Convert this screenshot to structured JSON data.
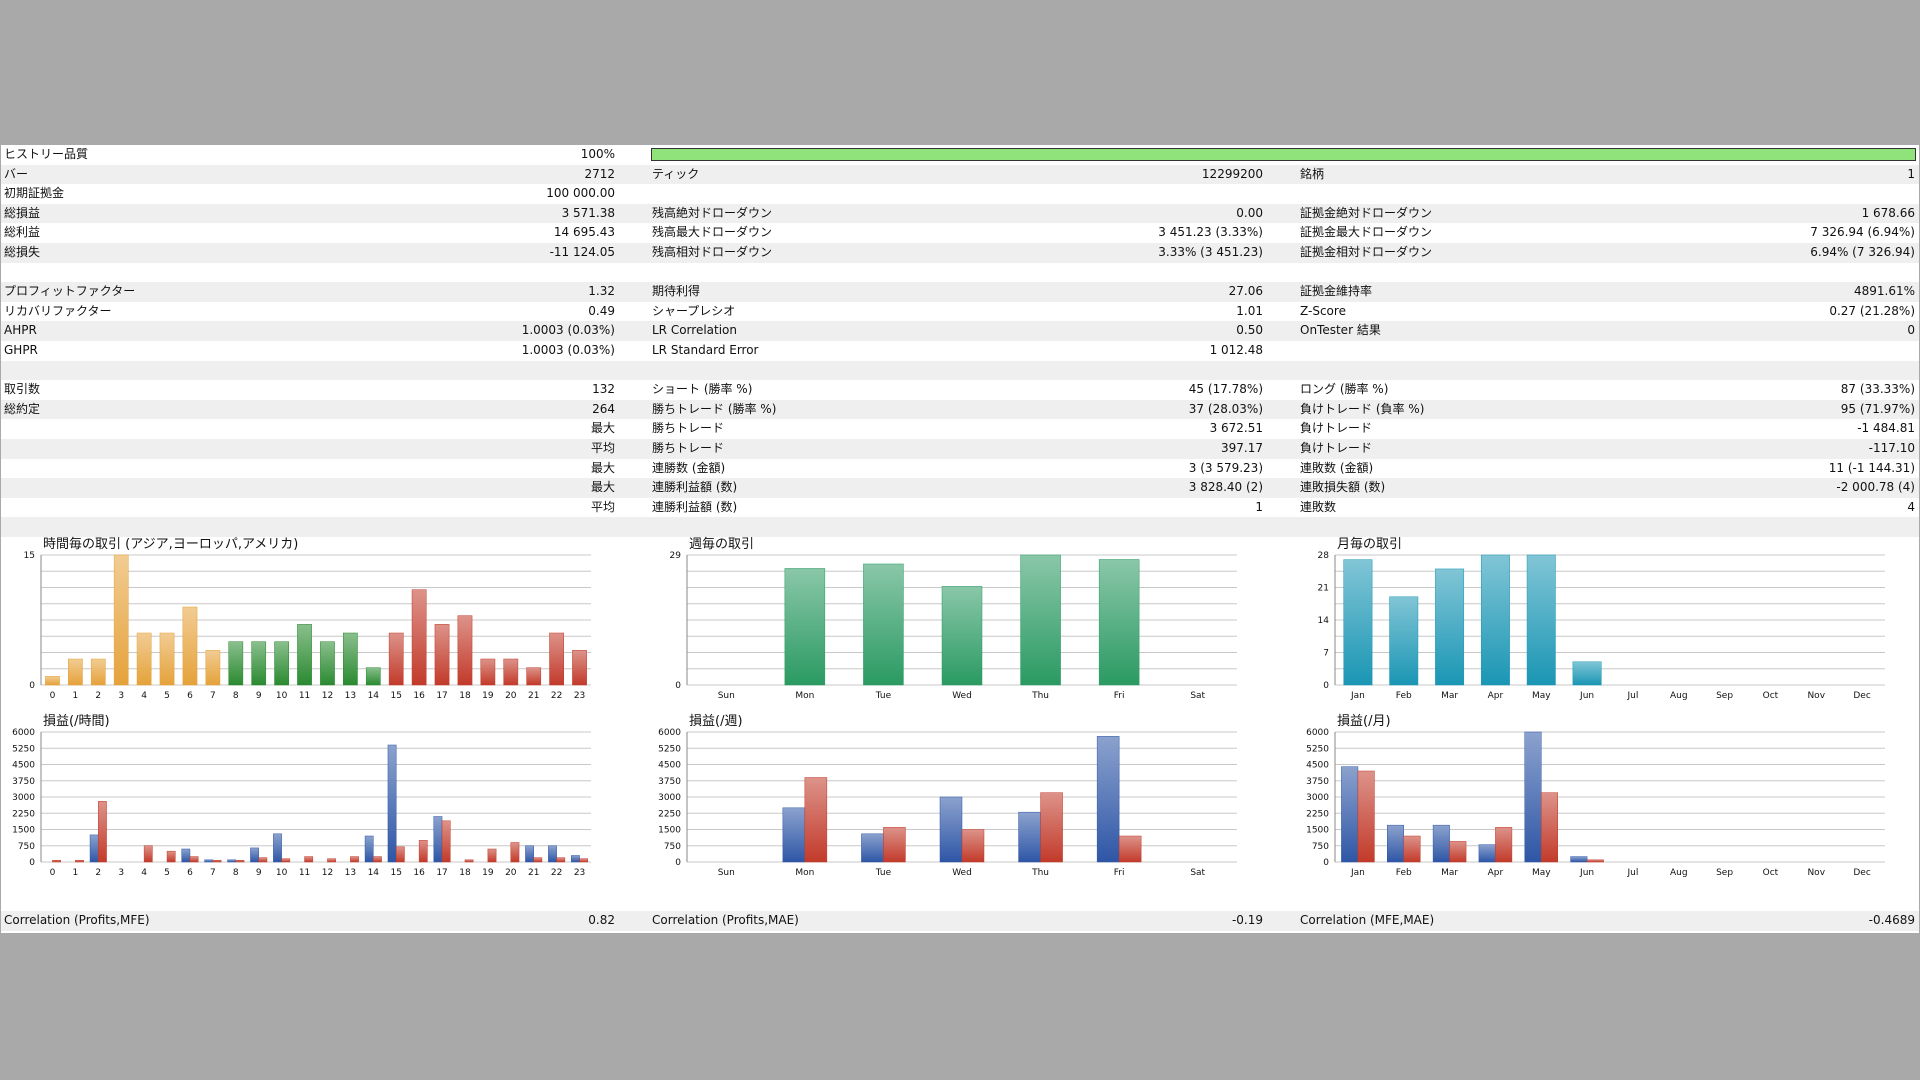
{
  "colors": {
    "background": "#a9a9a9",
    "quality_bar": "#90ee7a",
    "row_shade": "#efefef",
    "blue": "#2e56a6",
    "red": "#c23a2a",
    "teal_green": "#2a9a62",
    "cyan": "#1a96b4",
    "gold": "#e5a23a",
    "green": "#2a8a30"
  },
  "stats": {
    "history_quality": {
      "label": "ヒストリー品質",
      "value": "100%",
      "fraction": 1.0
    },
    "rows": [
      {
        "shade": true,
        "c1": {
          "label": "バー",
          "value": "2712"
        },
        "c2": {
          "label": "ティック",
          "value": "12299200"
        },
        "c3": {
          "label": "銘柄",
          "value": "1"
        }
      },
      {
        "shade": false,
        "c1": {
          "label": "初期証拠金",
          "value": "100 000.00"
        },
        "c2": {
          "label": "",
          "value": ""
        },
        "c3": {
          "label": "",
          "value": ""
        }
      },
      {
        "shade": true,
        "c1": {
          "label": "総損益",
          "value": "3 571.38"
        },
        "c2": {
          "label": "残高絶対ドローダウン",
          "value": "0.00"
        },
        "c3": {
          "label": "証拠金絶対ドローダウン",
          "value": "1 678.66"
        }
      },
      {
        "shade": false,
        "c1": {
          "label": "総利益",
          "value": "14 695.43"
        },
        "c2": {
          "label": "残高最大ドローダウン",
          "value": "3 451.23 (3.33%)"
        },
        "c3": {
          "label": "証拠金最大ドローダウン",
          "value": "7 326.94 (6.94%)"
        }
      },
      {
        "shade": true,
        "c1": {
          "label": "総損失",
          "value": "-11 124.05"
        },
        "c2": {
          "label": "残高相対ドローダウン",
          "value": "3.33% (3 451.23)"
        },
        "c3": {
          "label": "証拠金相対ドローダウン",
          "value": "6.94% (7 326.94)"
        }
      },
      {
        "shade": false,
        "c1": {
          "label": "",
          "value": ""
        },
        "c2": {
          "label": "",
          "value": ""
        },
        "c3": {
          "label": "",
          "value": ""
        }
      },
      {
        "shade": true,
        "c1": {
          "label": "プロフィットファクター",
          "value": "1.32"
        },
        "c2": {
          "label": "期待利得",
          "value": "27.06"
        },
        "c3": {
          "label": "証拠金維持率",
          "value": "4891.61%"
        }
      },
      {
        "shade": false,
        "c1": {
          "label": "リカバリファクター",
          "value": "0.49"
        },
        "c2": {
          "label": "シャープレシオ",
          "value": "1.01"
        },
        "c3": {
          "label": "Z-Score",
          "value": "0.27 (21.28%)"
        }
      },
      {
        "shade": true,
        "c1": {
          "label": "AHPR",
          "value": "1.0003 (0.03%)"
        },
        "c2": {
          "label": "LR Correlation",
          "value": "0.50"
        },
        "c3": {
          "label": "OnTester 結果",
          "value": "0"
        }
      },
      {
        "shade": false,
        "c1": {
          "label": "GHPR",
          "value": "1.0003 (0.03%)"
        },
        "c2": {
          "label": "LR Standard Error",
          "value": "1 012.48"
        },
        "c3": {
          "label": "",
          "value": ""
        }
      },
      {
        "shade": true,
        "c1": {
          "label": "",
          "value": ""
        },
        "c2": {
          "label": "",
          "value": ""
        },
        "c3": {
          "label": "",
          "value": ""
        }
      },
      {
        "shade": false,
        "c1": {
          "label": "取引数",
          "value": "132"
        },
        "c2": {
          "label": "ショート (勝率 %)",
          "value": "45 (17.78%)"
        },
        "c3": {
          "label": "ロング (勝率 %)",
          "value": "87 (33.33%)"
        }
      },
      {
        "shade": true,
        "c1": {
          "label": "総約定",
          "value": "264"
        },
        "c2": {
          "label": "勝ちトレード (勝率 %)",
          "value": "37 (28.03%)"
        },
        "c3": {
          "label": "負けトレード (負率 %)",
          "value": "95 (71.97%)"
        }
      },
      {
        "shade": false,
        "c1": {
          "label": "",
          "value": "最大"
        },
        "c2": {
          "label": "勝ちトレード",
          "value": "3 672.51"
        },
        "c3": {
          "label": "負けトレード",
          "value": "-1 484.81"
        }
      },
      {
        "shade": true,
        "c1": {
          "label": "",
          "value": "平均"
        },
        "c2": {
          "label": "勝ちトレード",
          "value": "397.17"
        },
        "c3": {
          "label": "負けトレード",
          "value": "-117.10"
        }
      },
      {
        "shade": false,
        "c1": {
          "label": "",
          "value": "最大"
        },
        "c2": {
          "label": "連勝数 (金額)",
          "value": "3 (3 579.23)"
        },
        "c3": {
          "label": "連敗数 (金額)",
          "value": "11 (-1 144.31)"
        }
      },
      {
        "shade": true,
        "c1": {
          "label": "",
          "value": "最大"
        },
        "c2": {
          "label": "連勝利益額 (数)",
          "value": "3 828.40 (2)"
        },
        "c3": {
          "label": "連敗損失額 (数)",
          "value": "-2 000.78 (4)"
        }
      },
      {
        "shade": false,
        "c1": {
          "label": "",
          "value": "平均"
        },
        "c2": {
          "label": "連勝利益額 (数)",
          "value": "1"
        },
        "c3": {
          "label": "連敗数",
          "value": "4"
        }
      },
      {
        "shade": true,
        "c1": {
          "label": "",
          "value": ""
        },
        "c2": {
          "label": "",
          "value": ""
        },
        "c3": {
          "label": "",
          "value": ""
        }
      }
    ],
    "correlations": [
      {
        "label": "Correlation (Profits,MFE)",
        "value": "0.82"
      },
      {
        "label": "Correlation (Profits,MAE)",
        "value": "-0.19"
      },
      {
        "label": "Correlation (MFE,MAE)",
        "value": "-0.4689"
      }
    ]
  },
  "chart_data": [
    {
      "id": "hourly-trades",
      "type": "bar",
      "title": "時間毎の取引 (アジア,ヨーロッパ,アメリカ)",
      "ylim": [
        0,
        15
      ],
      "yticks": [
        "15",
        "0"
      ],
      "categories": [
        "0",
        "1",
        "2",
        "3",
        "4",
        "5",
        "6",
        "7",
        "8",
        "9",
        "10",
        "11",
        "12",
        "13",
        "14",
        "15",
        "16",
        "17",
        "18",
        "19",
        "20",
        "21",
        "22",
        "23"
      ],
      "values": [
        1,
        3,
        3,
        15,
        6,
        6,
        9,
        4,
        5,
        5,
        5,
        7,
        5,
        6,
        2,
        6,
        11,
        7,
        8,
        3,
        3,
        2,
        6,
        4
      ],
      "session_colors": [
        "#e5a23a",
        "#e5a23a",
        "#e5a23a",
        "#e5a23a",
        "#e5a23a",
        "#e5a23a",
        "#e5a23a",
        "#e5a23a",
        "#2a8a30",
        "#2a8a30",
        "#2a8a30",
        "#2a8a30",
        "#2a8a30",
        "#2a8a30",
        "#2a8a30",
        "#c23a2a",
        "#c23a2a",
        "#c23a2a",
        "#c23a2a",
        "#c23a2a",
        "#c23a2a",
        "#c23a2a",
        "#c23a2a",
        "#c23a2a"
      ]
    },
    {
      "id": "weekly-trades",
      "type": "bar",
      "title": "週毎の取引",
      "ylim": [
        0,
        29
      ],
      "yticks": [
        "29",
        "0"
      ],
      "categories": [
        "Sun",
        "Mon",
        "Tue",
        "Wed",
        "Thu",
        "Fri",
        "Sat"
      ],
      "values": [
        0,
        26,
        27,
        22,
        29,
        28,
        0
      ],
      "color": "#2a9a62"
    },
    {
      "id": "monthly-trades",
      "type": "bar",
      "title": "月毎の取引",
      "ylim": [
        0,
        28
      ],
      "yticks": [
        "28",
        "21",
        "14",
        "7",
        "0"
      ],
      "categories": [
        "Jan",
        "Feb",
        "Mar",
        "Apr",
        "May",
        "Jun",
        "Jul",
        "Aug",
        "Sep",
        "Oct",
        "Nov",
        "Dec"
      ],
      "values": [
        27,
        19,
        25,
        28,
        28,
        5,
        0,
        0,
        0,
        0,
        0,
        0
      ],
      "color": "#1a96b4"
    },
    {
      "id": "hourly-pnl",
      "type": "bar",
      "title": "損益(/時間)",
      "ylim": [
        0,
        6000
      ],
      "yticks": [
        "6000",
        "5250",
        "4500",
        "3750",
        "3000",
        "2250",
        "1500",
        "750",
        "0"
      ],
      "categories": [
        "0",
        "1",
        "2",
        "3",
        "4",
        "5",
        "6",
        "7",
        "8",
        "9",
        "10",
        "11",
        "12",
        "13",
        "14",
        "15",
        "16",
        "17",
        "18",
        "19",
        "20",
        "21",
        "22",
        "23"
      ],
      "series": [
        {
          "values": [
            0,
            0,
            1250,
            0,
            0,
            0,
            600,
            100,
            100,
            650,
            1300,
            0,
            0,
            0,
            1200,
            5400,
            0,
            2100,
            0,
            0,
            0,
            750,
            750,
            300
          ]
        },
        {
          "values": [
            80,
            80,
            2800,
            0,
            750,
            500,
            250,
            80,
            80,
            200,
            150,
            250,
            150,
            250,
            250,
            700,
            1000,
            1900,
            100,
            600,
            900,
            200,
            200,
            150
          ]
        }
      ]
    },
    {
      "id": "weekly-pnl",
      "type": "bar",
      "title": "損益(/週)",
      "ylim": [
        0,
        6000
      ],
      "yticks": [
        "6000",
        "5250",
        "4500",
        "3750",
        "3000",
        "2250",
        "1500",
        "750",
        "0"
      ],
      "categories": [
        "Sun",
        "Mon",
        "Tue",
        "Wed",
        "Thu",
        "Fri",
        "Sat"
      ],
      "series": [
        {
          "values": [
            0,
            2500,
            1300,
            3000,
            2300,
            5800,
            0
          ]
        },
        {
          "values": [
            0,
            3900,
            1600,
            1500,
            3200,
            1200,
            0
          ]
        }
      ]
    },
    {
      "id": "monthly-pnl",
      "type": "bar",
      "title": "損益(/月)",
      "ylim": [
        0,
        6000
      ],
      "yticks": [
        "6000",
        "5250",
        "4500",
        "3750",
        "3000",
        "2250",
        "1500",
        "750",
        "0"
      ],
      "categories": [
        "Jan",
        "Feb",
        "Mar",
        "Apr",
        "May",
        "Jun",
        "Jul",
        "Aug",
        "Sep",
        "Oct",
        "Nov",
        "Dec"
      ],
      "series": [
        {
          "values": [
            4400,
            1700,
            1700,
            800,
            6000,
            250,
            0,
            0,
            0,
            0,
            0,
            0
          ]
        },
        {
          "values": [
            4200,
            1200,
            950,
            1600,
            3200,
            100,
            0,
            0,
            0,
            0,
            0,
            0
          ]
        }
      ]
    }
  ]
}
